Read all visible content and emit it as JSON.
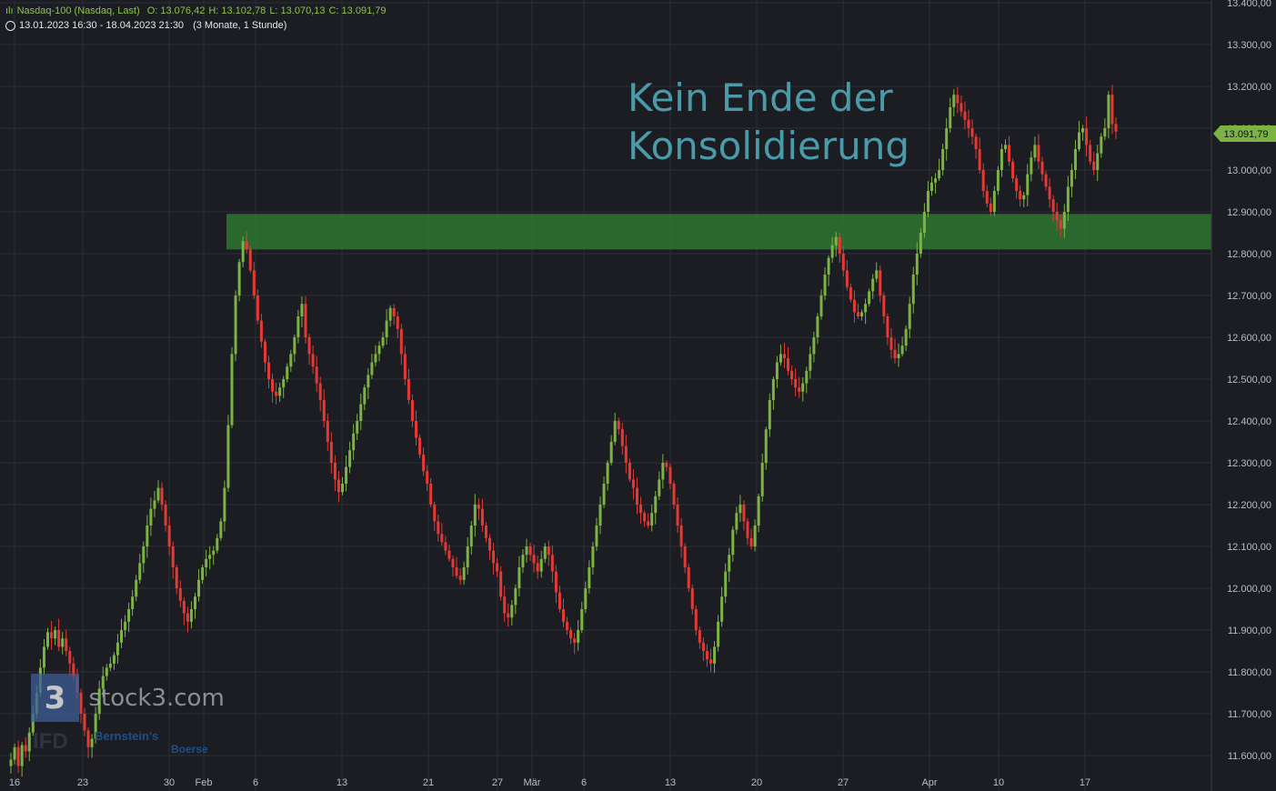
{
  "header": {
    "symbol": "Nasdaq-100 (Nasdaq, Last)",
    "open": "O: 13.076,42",
    "high": "H: 13.102,78",
    "low": "L: 13.070,13",
    "close": "C: 13.091,79",
    "period": "13.01.2023 16:30 - 18.04.2023 21:30",
    "interval": "(3 Monate, 1 Stunde)"
  },
  "annotation": {
    "line1": "Kein Ende der",
    "line2": "Konsolidierung"
  },
  "watermark": {
    "brand": "stock3.com",
    "logo_char": "3",
    "sub1": "IFD",
    "sub2": "Bernstein's",
    "sub3": "Boerse"
  },
  "colors": {
    "up": "#7cb342",
    "down": "#e53935",
    "zone": "#2e7d32",
    "annotation": "#4a9aa8",
    "price_tag": "#7cb342"
  },
  "chart_data": {
    "type": "candlestick",
    "title": "Nasdaq-100 (Nasdaq, Last)",
    "y_unit": "points",
    "ylim": [
      11550,
      13400
    ],
    "y_ticks": [
      "11.600,00",
      "11.700,00",
      "11.800,00",
      "11.900,00",
      "12.000,00",
      "12.100,00",
      "12.200,00",
      "12.300,00",
      "12.400,00",
      "12.500,00",
      "12.600,00",
      "12.700,00",
      "12.800,00",
      "12.900,00",
      "13.000,00",
      "13.100,00",
      "13.200,00",
      "13.300,00",
      "13.400,00"
    ],
    "x_ticks": [
      "16",
      "23",
      "30",
      "Feb",
      "6",
      "13",
      "21",
      "27",
      "Mär",
      "6",
      "13",
      "20",
      "27",
      "Apr",
      "10",
      "17"
    ],
    "current_price": "13.091,79",
    "resistance_zone": [
      12810,
      12895
    ],
    "grid": true,
    "closes": [
      11590,
      11620,
      11575,
      11625,
      11610,
      11655,
      11700,
      11750,
      11810,
      11860,
      11895,
      11880,
      11900,
      11860,
      11880,
      11850,
      11820,
      11790,
      11750,
      11700,
      11660,
      11620,
      11640,
      11700,
      11760,
      11790,
      11810,
      11820,
      11840,
      11870,
      11900,
      11920,
      11950,
      11980,
      12020,
      12060,
      12100,
      12150,
      12190,
      12210,
      12240,
      12200,
      12150,
      12100,
      12050,
      12000,
      11970,
      11940,
      11920,
      11950,
      11980,
      12020,
      12050,
      12070,
      12080,
      12090,
      12120,
      12160,
      12240,
      12390,
      12560,
      12700,
      12780,
      12830,
      12810,
      12760,
      12700,
      12640,
      12590,
      12540,
      12500,
      12470,
      12460,
      12480,
      12500,
      12530,
      12560,
      12600,
      12650,
      12680,
      12600,
      12560,
      12530,
      12490,
      12450,
      12400,
      12350,
      12300,
      12260,
      12230,
      12250,
      12290,
      12330,
      12370,
      12400,
      12440,
      12480,
      12510,
      12540,
      12560,
      12580,
      12600,
      12640,
      12670,
      12650,
      12620,
      12560,
      12500,
      12450,
      12400,
      12360,
      12320,
      12280,
      12250,
      12200,
      12160,
      12130,
      12110,
      12090,
      12070,
      12050,
      12030,
      12020,
      12050,
      12100,
      12150,
      12200,
      12190,
      12150,
      12120,
      12090,
      12060,
      12040,
      11980,
      11940,
      11930,
      11960,
      12000,
      12050,
      12080,
      12100,
      12080,
      12060,
      12040,
      12070,
      12100,
      12080,
      12040,
      11990,
      11950,
      11920,
      11900,
      11880,
      11870,
      11900,
      11950,
      12000,
      12050,
      12100,
      12150,
      12200,
      12250,
      12300,
      12350,
      12400,
      12380,
      12340,
      12300,
      12260,
      12240,
      12200,
      12180,
      12160,
      12150,
      12180,
      12220,
      12260,
      12300,
      12290,
      12250,
      12200,
      12150,
      12100,
      12050,
      12000,
      11950,
      11900,
      11870,
      11850,
      11830,
      11820,
      11860,
      11920,
      11980,
      12040,
      12080,
      12140,
      12180,
      12200,
      12160,
      12120,
      12100,
      12150,
      12220,
      12300,
      12380,
      12450,
      12500,
      12540,
      12560,
      12550,
      12520,
      12500,
      12480,
      12470,
      12490,
      12520,
      12560,
      12600,
      12650,
      12700,
      12750,
      12790,
      12820,
      12840,
      12800,
      12760,
      12720,
      12690,
      12660,
      12650,
      12660,
      12680,
      12710,
      12740,
      12760,
      12700,
      12650,
      12600,
      12570,
      12550,
      12560,
      12580,
      12620,
      12680,
      12750,
      12800,
      12850,
      12900,
      12950,
      12970,
      12980,
      13000,
      13050,
      13100,
      13150,
      13180,
      13160,
      13140,
      13120,
      13100,
      13080,
      13050,
      13000,
      12950,
      12920,
      12900,
      12950,
      13000,
      13050,
      13060,
      13020,
      12980,
      12950,
      12930,
      12940,
      12990,
      13030,
      13060,
      13020,
      12990,
      12960,
      12930,
      12900,
      12880,
      12860,
      12900,
      12960,
      13000,
      13050,
      13090,
      13100,
      13060,
      13020,
      13000,
      13040,
      13080,
      13100,
      13180,
      13110,
      13092
    ]
  }
}
